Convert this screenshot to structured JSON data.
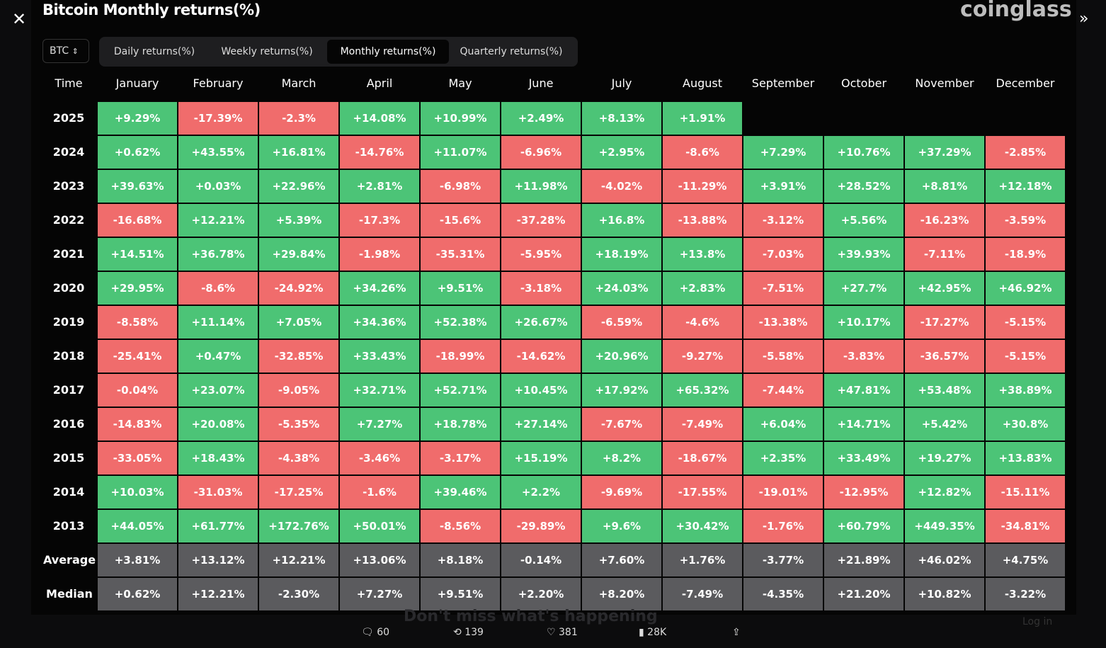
{
  "header": {
    "title": "Bitcoin Monthly returns(%)",
    "brand": "coinglass"
  },
  "selector": "BTC",
  "tabs": {
    "items": [
      "Daily returns(%)",
      "Weekly returns(%)",
      "Monthly returns(%)",
      "Quarterly returns(%)"
    ],
    "active": 2
  },
  "table": {
    "columns": [
      "Time",
      "January",
      "February",
      "March",
      "April",
      "May",
      "June",
      "July",
      "August",
      "September",
      "October",
      "November",
      "December"
    ],
    "colors": {
      "positive": "#4cc477",
      "negative": "#f06c6c",
      "summary": "#5b5b5e"
    },
    "rows": [
      {
        "label": "2025",
        "cells": [
          "+9.29%",
          "-17.39%",
          "-2.3%",
          "+14.08%",
          "+10.99%",
          "+2.49%",
          "+8.13%",
          "+1.91%"
        ]
      },
      {
        "label": "2024",
        "cells": [
          "+0.62%",
          "+43.55%",
          "+16.81%",
          "-14.76%",
          "+11.07%",
          "-6.96%",
          "+2.95%",
          "-8.6%",
          "+7.29%",
          "+10.76%",
          "+37.29%",
          "-2.85%"
        ]
      },
      {
        "label": "2023",
        "cells": [
          "+39.63%",
          "+0.03%",
          "+22.96%",
          "+2.81%",
          "-6.98%",
          "+11.98%",
          "-4.02%",
          "-11.29%",
          "+3.91%",
          "+28.52%",
          "+8.81%",
          "+12.18%"
        ]
      },
      {
        "label": "2022",
        "cells": [
          "-16.68%",
          "+12.21%",
          "+5.39%",
          "-17.3%",
          "-15.6%",
          "-37.28%",
          "+16.8%",
          "-13.88%",
          "-3.12%",
          "+5.56%",
          "-16.23%",
          "-3.59%"
        ]
      },
      {
        "label": "2021",
        "cells": [
          "+14.51%",
          "+36.78%",
          "+29.84%",
          "-1.98%",
          "-35.31%",
          "-5.95%",
          "+18.19%",
          "+13.8%",
          "-7.03%",
          "+39.93%",
          "-7.11%",
          "-18.9%"
        ]
      },
      {
        "label": "2020",
        "cells": [
          "+29.95%",
          "-8.6%",
          "-24.92%",
          "+34.26%",
          "+9.51%",
          "-3.18%",
          "+24.03%",
          "+2.83%",
          "-7.51%",
          "+27.7%",
          "+42.95%",
          "+46.92%"
        ]
      },
      {
        "label": "2019",
        "cells": [
          "-8.58%",
          "+11.14%",
          "+7.05%",
          "+34.36%",
          "+52.38%",
          "+26.67%",
          "-6.59%",
          "-4.6%",
          "-13.38%",
          "+10.17%",
          "-17.27%",
          "-5.15%"
        ]
      },
      {
        "label": "2018",
        "cells": [
          "-25.41%",
          "+0.47%",
          "-32.85%",
          "+33.43%",
          "-18.99%",
          "-14.62%",
          "+20.96%",
          "-9.27%",
          "-5.58%",
          "-3.83%",
          "-36.57%",
          "-5.15%"
        ]
      },
      {
        "label": "2017",
        "cells": [
          "-0.04%",
          "+23.07%",
          "-9.05%",
          "+32.71%",
          "+52.71%",
          "+10.45%",
          "+17.92%",
          "+65.32%",
          "-7.44%",
          "+47.81%",
          "+53.48%",
          "+38.89%"
        ]
      },
      {
        "label": "2016",
        "cells": [
          "-14.83%",
          "+20.08%",
          "-5.35%",
          "+7.27%",
          "+18.78%",
          "+27.14%",
          "-7.67%",
          "-7.49%",
          "+6.04%",
          "+14.71%",
          "+5.42%",
          "+30.8%"
        ]
      },
      {
        "label": "2015",
        "cells": [
          "-33.05%",
          "+18.43%",
          "-4.38%",
          "-3.46%",
          "-3.17%",
          "+15.19%",
          "+8.2%",
          "-18.67%",
          "+2.35%",
          "+33.49%",
          "+19.27%",
          "+13.83%"
        ]
      },
      {
        "label": "2014",
        "cells": [
          "+10.03%",
          "-31.03%",
          "-17.25%",
          "-1.6%",
          "+39.46%",
          "+2.2%",
          "-9.69%",
          "-17.55%",
          "-19.01%",
          "-12.95%",
          "+12.82%",
          "-15.11%"
        ]
      },
      {
        "label": "2013",
        "cells": [
          "+44.05%",
          "+61.77%",
          "+172.76%",
          "+50.01%",
          "-8.56%",
          "-29.89%",
          "+9.6%",
          "+30.42%",
          "-1.76%",
          "+60.79%",
          "+449.35%",
          "-34.81%"
        ]
      }
    ],
    "summary_rows": [
      {
        "label": "Average",
        "cells": [
          "+3.81%",
          "+13.12%",
          "+12.21%",
          "+13.06%",
          "+8.18%",
          "-0.14%",
          "+7.60%",
          "+1.76%",
          "-3.77%",
          "+21.89%",
          "+46.02%",
          "+4.75%"
        ]
      },
      {
        "label": "Median",
        "cells": [
          "+0.62%",
          "+12.21%",
          "-2.30%",
          "+7.27%",
          "+9.51%",
          "+2.20%",
          "+8.20%",
          "-7.49%",
          "-4.35%",
          "+21.20%",
          "+10.82%",
          "-3.22%"
        ]
      }
    ]
  },
  "footer": {
    "replies": 60,
    "reposts": 139,
    "likes": 381,
    "views": "28K",
    "banner": "Don't miss what's happening",
    "login": "Log in"
  }
}
